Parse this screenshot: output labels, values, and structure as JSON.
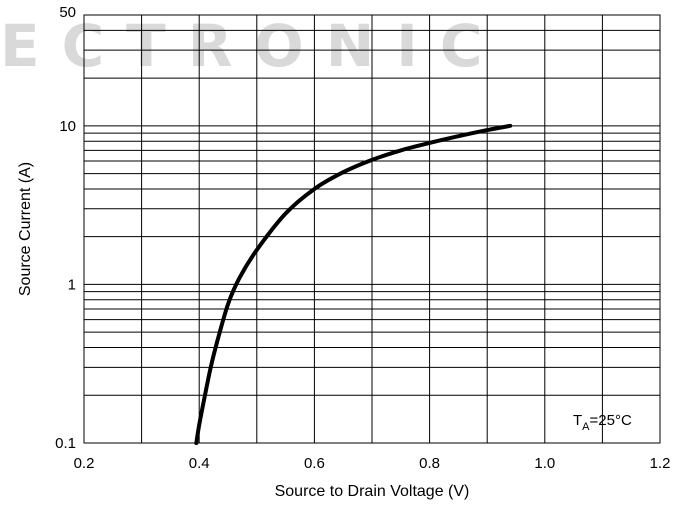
{
  "watermark": "ECTRONIC",
  "chart_data": {
    "type": "line",
    "xlabel": "Source to Drain Voltage (V)",
    "ylabel": "Source Current (A)",
    "xlim": [
      0.2,
      1.2
    ],
    "ylim": [
      0.1,
      50
    ],
    "yscale": "log",
    "grid": true,
    "x_ticks": [
      "0.2",
      "0.4",
      "0.6",
      "0.8",
      "1.0",
      "1.2"
    ],
    "y_ticks": [
      "0.1",
      "1",
      "10",
      "50"
    ],
    "annotation": {
      "main": "T",
      "sub": "A",
      "rest": "=25°C"
    },
    "series": [
      {
        "x": [
          0.395,
          0.4,
          0.41,
          0.42,
          0.43,
          0.45,
          0.47,
          0.5,
          0.55,
          0.6,
          0.65,
          0.7,
          0.75,
          0.8,
          0.85,
          0.9,
          0.94
        ],
        "y": [
          0.1,
          0.13,
          0.2,
          0.3,
          0.42,
          0.75,
          1.1,
          1.65,
          2.8,
          4.0,
          5.1,
          6.1,
          7.0,
          7.8,
          8.6,
          9.4,
          10.0
        ]
      }
    ]
  }
}
